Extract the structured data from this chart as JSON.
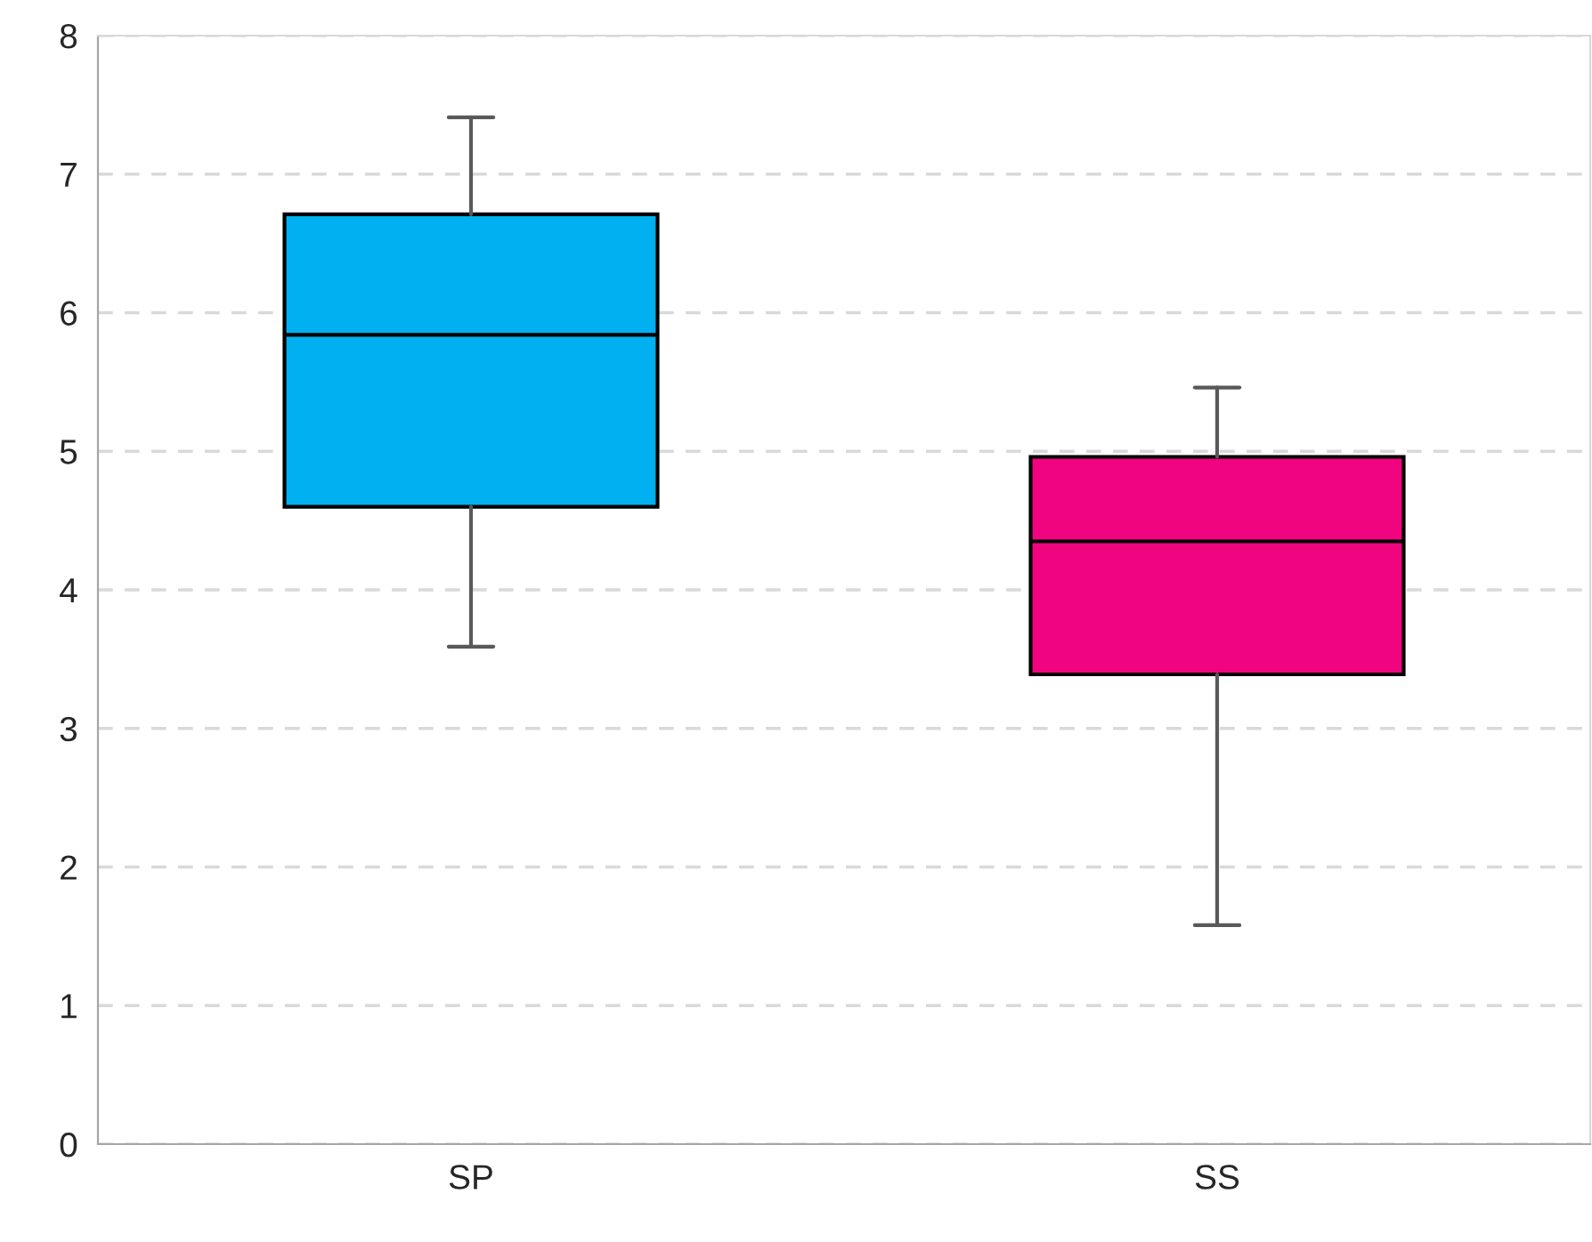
{
  "chart_data": {
    "type": "box",
    "categories": [
      "SP",
      "SS"
    ],
    "boxes": [
      {
        "low": 3.59,
        "q1": 4.6,
        "median": 5.84,
        "q3": 6.71,
        "high": 7.41
      },
      {
        "low": 1.58,
        "q1": 3.39,
        "median": 4.35,
        "q3": 4.96,
        "high": 5.46
      }
    ],
    "colors": [
      "#00b0f0",
      "#f0047f"
    ],
    "ylim": [
      0,
      8
    ],
    "yticks": [
      0,
      1,
      2,
      3,
      4,
      5,
      6,
      7,
      8
    ],
    "grid": "y",
    "legend": false
  }
}
